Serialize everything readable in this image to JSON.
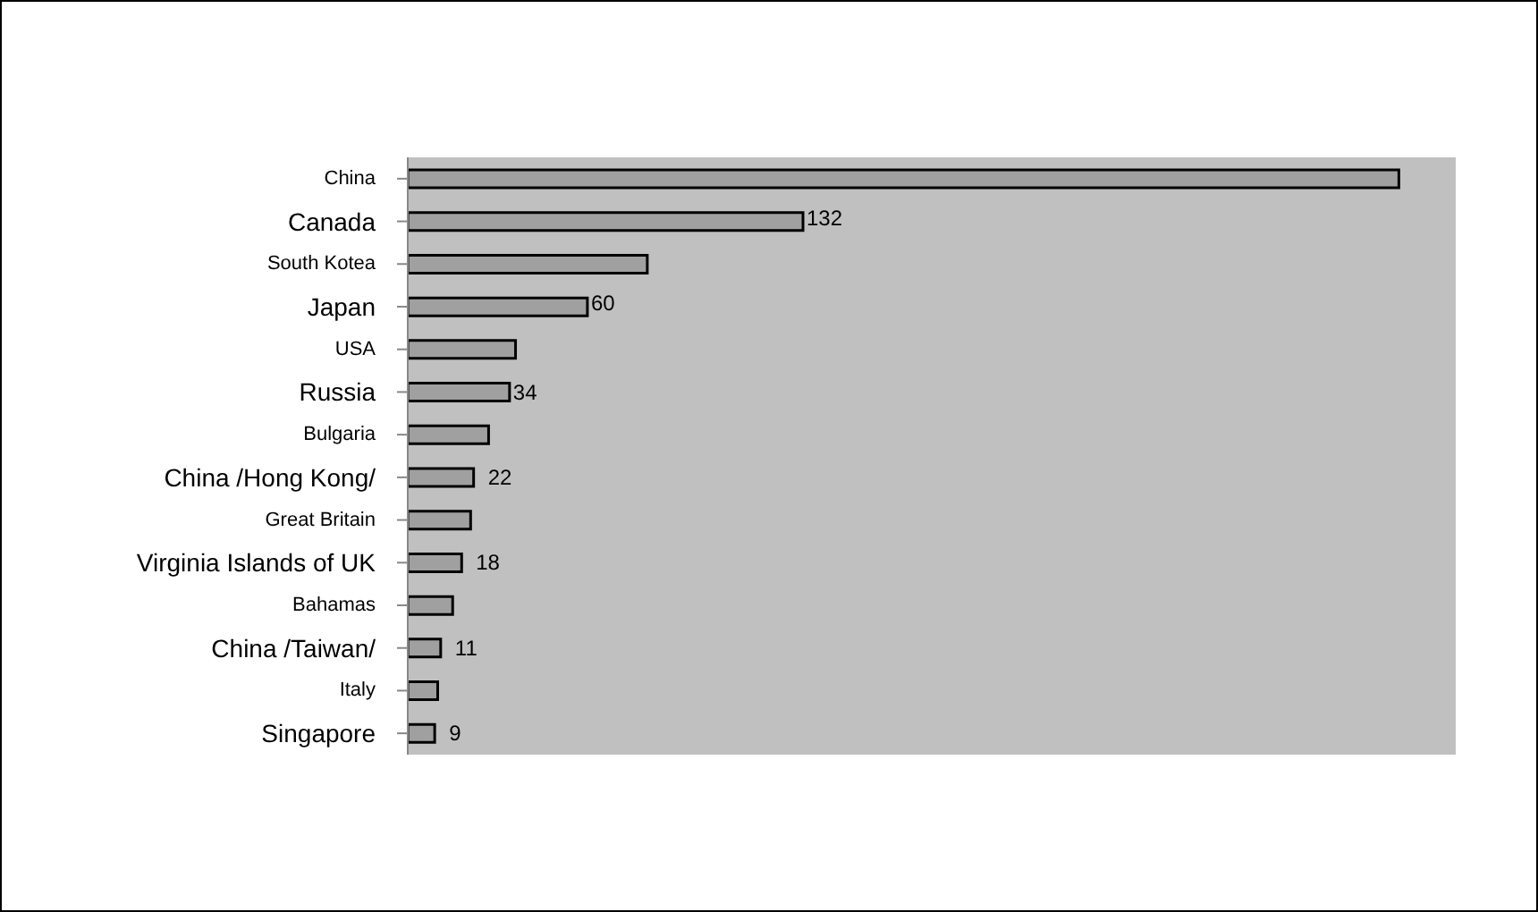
{
  "chart_data": {
    "type": "bar",
    "orientation": "horizontal",
    "categories": [
      "China",
      "Canada",
      "South Kotea",
      "Japan",
      "USA",
      "Russia",
      "Bulgaria",
      "China /Hong Kong/",
      "Great Britain",
      "Virginia Islands of UK",
      "Bahamas",
      "China /Taiwan/",
      "Italy",
      "Singapore"
    ],
    "values": [
      331,
      132,
      80,
      60,
      36,
      34,
      27,
      22,
      21,
      18,
      15,
      11,
      10,
      9
    ],
    "value_labels": [
      null,
      "132",
      null,
      "60",
      null,
      "34",
      null,
      "22",
      null,
      "18",
      null,
      "11",
      null,
      "9"
    ],
    "color": "#a0a0a0",
    "xlim": [
      0,
      350
    ]
  }
}
